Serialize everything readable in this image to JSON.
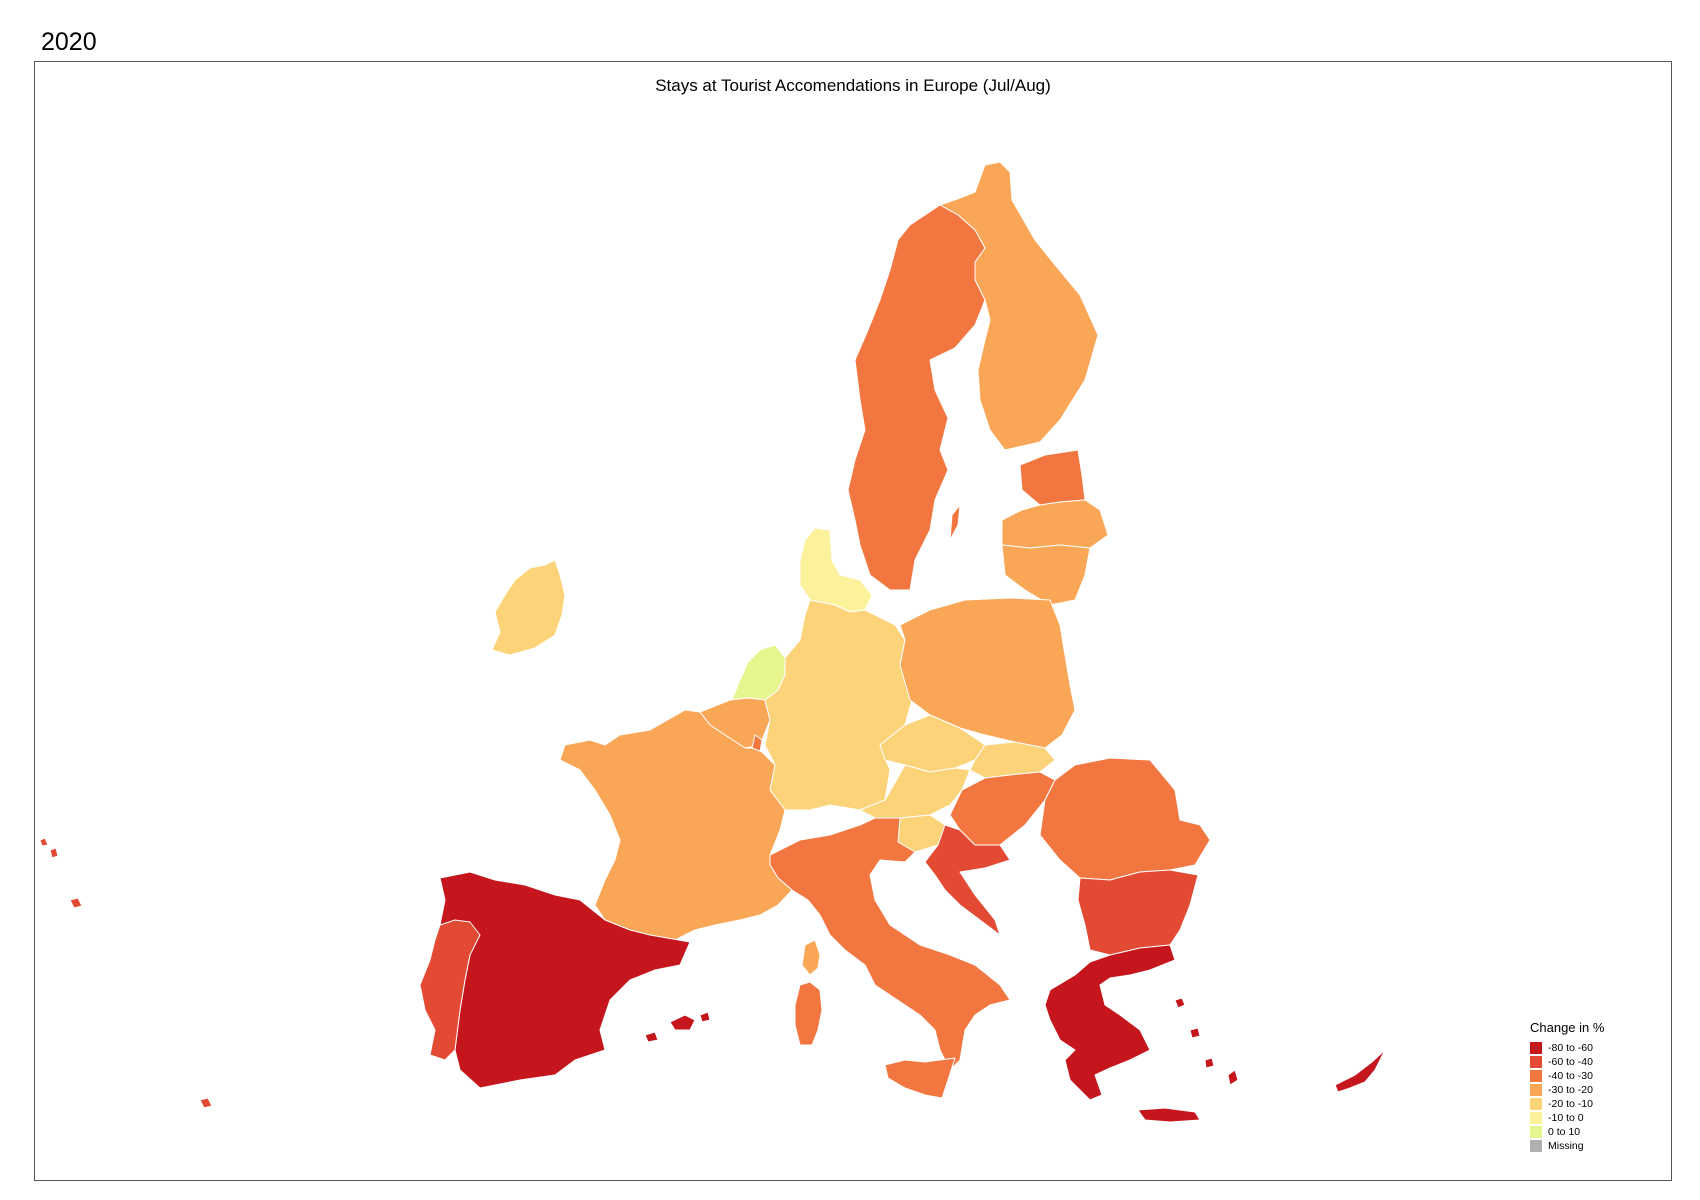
{
  "year_label": "2020",
  "map": {
    "title": "Stays at Tourist Accomendations in Europe (Jul/Aug)"
  },
  "legend": {
    "title": "Change in %",
    "items": [
      {
        "label": "-80 to -60",
        "color": "#c4161c"
      },
      {
        "label": "-60 to -40",
        "color": "#e34a33"
      },
      {
        "label": "-40 to -30",
        "color": "#f27640"
      },
      {
        "label": "-30 to -20",
        "color": "#f9a656"
      },
      {
        "label": "-20 to -10",
        "color": "#fcd379"
      },
      {
        "label": "-10 to 0",
        "color": "#fdf29c"
      },
      {
        "label": "0 to 10",
        "color": "#e6f58e"
      },
      {
        "label": "Missing",
        "color": "#b0b0b0"
      }
    ]
  }
}
